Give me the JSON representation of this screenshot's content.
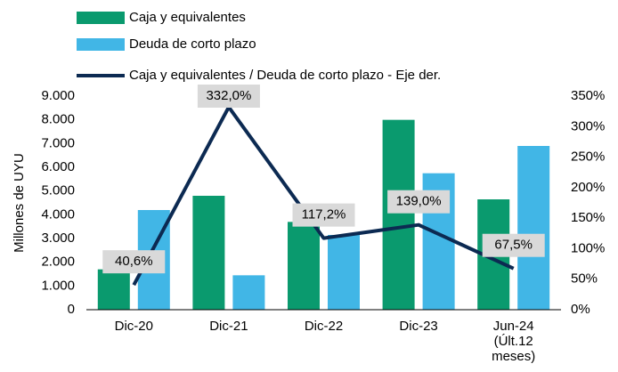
{
  "chart_data": {
    "type": "bar",
    "y_label": "Millones de UYU",
    "categories": [
      "Dic-20",
      "Dic-21",
      "Dic-22",
      "Dic-23",
      "Jun-24 (Últ.12 meses)"
    ],
    "series": [
      {
        "name": "Caja y equivalentes",
        "color": "#0a9a6e",
        "values": [
          1700,
          4800,
          3700,
          8000,
          4650
        ]
      },
      {
        "name": "Deuda de corto plazo",
        "color": "#41b6e6",
        "values": [
          4200,
          1450,
          3150,
          5750,
          6900
        ]
      },
      {
        "name": "Caja y equivalentes / Deuda de corto plazo - Eje der.",
        "color": "#0c2a52",
        "type": "line",
        "axis": "y2",
        "values": [
          40.6,
          332,
          117.2,
          139,
          67.5
        ],
        "value_labels": [
          "40,6%",
          "332,0%",
          "117,2%",
          "139,0%",
          "67,5%"
        ]
      }
    ],
    "ylim": [
      0,
      9000
    ],
    "yticks": [
      0,
      {
        "value": 1000,
        "label": "1.000"
      },
      {
        "value": 2000,
        "label": "2.000"
      },
      {
        "value": 3000,
        "label": "3.000"
      },
      {
        "value": 4000,
        "label": "4.000"
      },
      {
        "value": 5000,
        "label": "5.000"
      },
      {
        "value": 6000,
        "label": "6.000"
      },
      {
        "value": 7000,
        "label": "7.000"
      },
      {
        "value": 8000,
        "label": "8.000"
      },
      {
        "value": 9000,
        "label": "9.000"
      }
    ],
    "y2lim": [
      0,
      350
    ],
    "y2ticks": [
      {
        "value": 0,
        "label": "0%"
      },
      {
        "value": 50,
        "label": "50%"
      },
      {
        "value": 100,
        "label": "100%"
      },
      {
        "value": 150,
        "label": "150%"
      },
      {
        "value": 200,
        "label": "200%"
      },
      {
        "value": 250,
        "label": "250%"
      },
      {
        "value": 300,
        "label": "300%"
      },
      {
        "value": 350,
        "label": "350%"
      }
    ],
    "grid": false
  }
}
